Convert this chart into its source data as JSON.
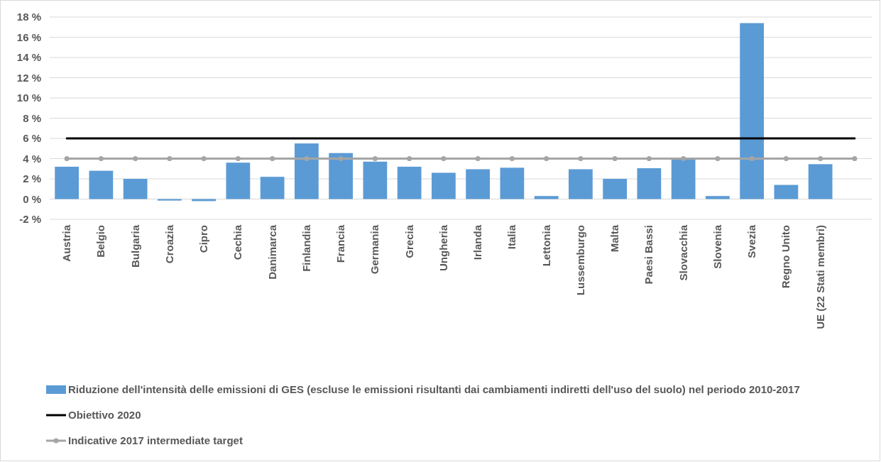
{
  "chart_data": {
    "type": "bar",
    "categories": [
      "Austria",
      "Belgio",
      "Bulgaria",
      "Croazia",
      "Cipro",
      "Cechia",
      "Danimarca",
      "Finlandia",
      "Francia",
      "Germania",
      "Grecia",
      "Ungheria",
      "Irlanda",
      "Italia",
      "Lettonia",
      "Lussemburgo",
      "Malta",
      "Paesi Bassi",
      "Slovacchia",
      "Slovenia",
      "Svezia",
      "Regno Unito",
      "UE (22 Stati membri)",
      null
    ],
    "series": [
      {
        "name": "Riduzione dell'intensità delle emissioni di GES (escluse le emissioni risultanti dai cambiamenti indiretti dell'uso del suolo) nel periodo 2010-2017",
        "color": "#5b9bd5",
        "values": [
          3.2,
          2.8,
          2.0,
          -0.15,
          -0.2,
          3.6,
          2.2,
          5.5,
          4.55,
          3.7,
          3.2,
          2.6,
          2.95,
          3.1,
          0.3,
          2.95,
          2.0,
          3.05,
          3.95,
          0.3,
          17.4,
          1.4,
          3.45,
          null
        ]
      },
      {
        "name": "Obiettivo 2020",
        "type": "line",
        "color": "#000000",
        "marker": "none",
        "values": [
          6,
          6,
          6,
          6,
          6,
          6,
          6,
          6,
          6,
          6,
          6,
          6,
          6,
          6,
          6,
          6,
          6,
          6,
          6,
          6,
          6,
          6,
          6,
          6
        ]
      },
      {
        "name": "Indicative 2017 intermediate target",
        "type": "line",
        "color": "#a5a5a5",
        "marker": "circle",
        "values": [
          4,
          4,
          4,
          4,
          4,
          4,
          4,
          4,
          4,
          4,
          4,
          4,
          4,
          4,
          4,
          4,
          4,
          4,
          4,
          4,
          4,
          4,
          4,
          4
        ]
      }
    ],
    "ylim": [
      -2,
      18
    ],
    "yticks": [
      {
        "value": -2,
        "label": "-2 %"
      },
      {
        "value": 0,
        "label": "0 %"
      },
      {
        "value": 2,
        "label": "2 %"
      },
      {
        "value": 4,
        "label": "4 %"
      },
      {
        "value": 6,
        "label": "6 %"
      },
      {
        "value": 8,
        "label": "8 %"
      },
      {
        "value": 10,
        "label": "10 %"
      },
      {
        "value": 12,
        "label": "12 %"
      },
      {
        "value": 14,
        "label": "14 %"
      },
      {
        "value": 16,
        "label": "16 %"
      },
      {
        "value": 18,
        "label": "18 %"
      }
    ],
    "grid": "y",
    "legend": "bottom"
  }
}
